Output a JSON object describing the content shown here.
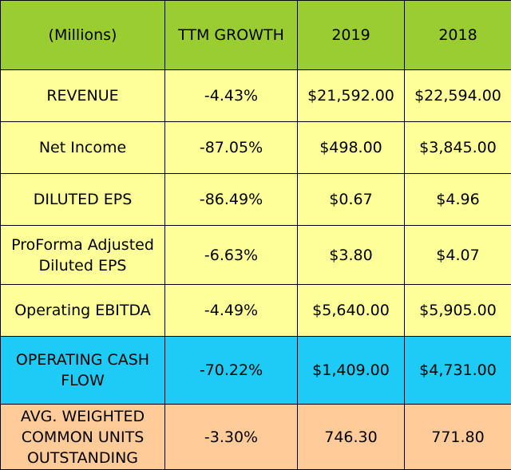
{
  "table": {
    "headers": [
      "(Millions)",
      "TTM GROWTH",
      "2019",
      "2018"
    ],
    "rows": [
      {
        "label": "REVENUE",
        "ttm": "-4.43%",
        "y2019": "$21,592.00",
        "y2018": "$22,594.00",
        "color": "#ffff99"
      },
      {
        "label": "Net Income",
        "ttm": "-87.05%",
        "y2019": "$498.00",
        "y2018": "$3,845.00",
        "color": "#ffff99"
      },
      {
        "label": "DILUTED EPS",
        "ttm": "-86.49%",
        "y2019": "$0.67",
        "y2018": "$4.96",
        "color": "#ffff99"
      },
      {
        "label_lines": [
          "ProForma Adjusted",
          "Diluted EPS"
        ],
        "ttm": "-6.63%",
        "y2019": "$3.80",
        "y2018": "$4.07",
        "color": "#ffff99"
      },
      {
        "label": "Operating EBITDA",
        "ttm": "-4.49%",
        "y2019": "$5,640.00",
        "y2018": "$5,905.00",
        "color": "#ffff99"
      },
      {
        "label_lines": [
          "OPERATING CASH",
          "FLOW"
        ],
        "ttm": "-70.22%",
        "y2019": "$1,409.00",
        "y2018": "$4,731.00",
        "color": "#1ecaf6"
      },
      {
        "label_lines": [
          "AVG. WEIGHTED",
          "COMMON UNITS",
          "OUTSTANDING"
        ],
        "ttm": "-3.30%",
        "y2019": "746.30",
        "y2018": "771.80",
        "color": "#ffcc99"
      }
    ],
    "header_color": "#9acd32"
  }
}
